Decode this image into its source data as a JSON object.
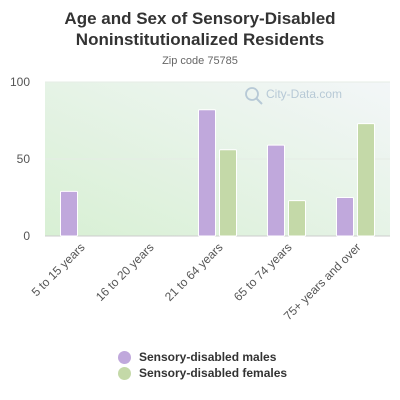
{
  "header": {
    "title_line1": "Age and Sex of Sensory-Disabled",
    "title_line2": "Noninstitutionalized Residents",
    "subtitle": "Zip code 75785"
  },
  "watermark": "City-Data.com",
  "legend": {
    "males": "Sensory-disabled males",
    "females": "Sensory-disabled females"
  },
  "colors": {
    "males": "#c0a8dc",
    "females": "#c4d9a8",
    "plot_bg_top": "#f3f6f8",
    "plot_bg_bottom": "#d8f0d4"
  },
  "chart_data": {
    "type": "bar",
    "title": "Age and Sex of Sensory-Disabled Noninstitutionalized Residents",
    "subtitle": "Zip code 75785",
    "categories": [
      "5 to 15 years",
      "16 to 20 years",
      "21 to 64 years",
      "65 to 74 years",
      "75+ years and over"
    ],
    "series": [
      {
        "name": "Sensory-disabled males",
        "values": [
          29,
          0,
          82,
          59,
          25
        ]
      },
      {
        "name": "Sensory-disabled females",
        "values": [
          0,
          0,
          56,
          23,
          73
        ]
      }
    ],
    "ylim": [
      0,
      100
    ],
    "yticks": [
      0,
      50,
      100
    ],
    "legend_position": "bottom",
    "grid": true
  }
}
